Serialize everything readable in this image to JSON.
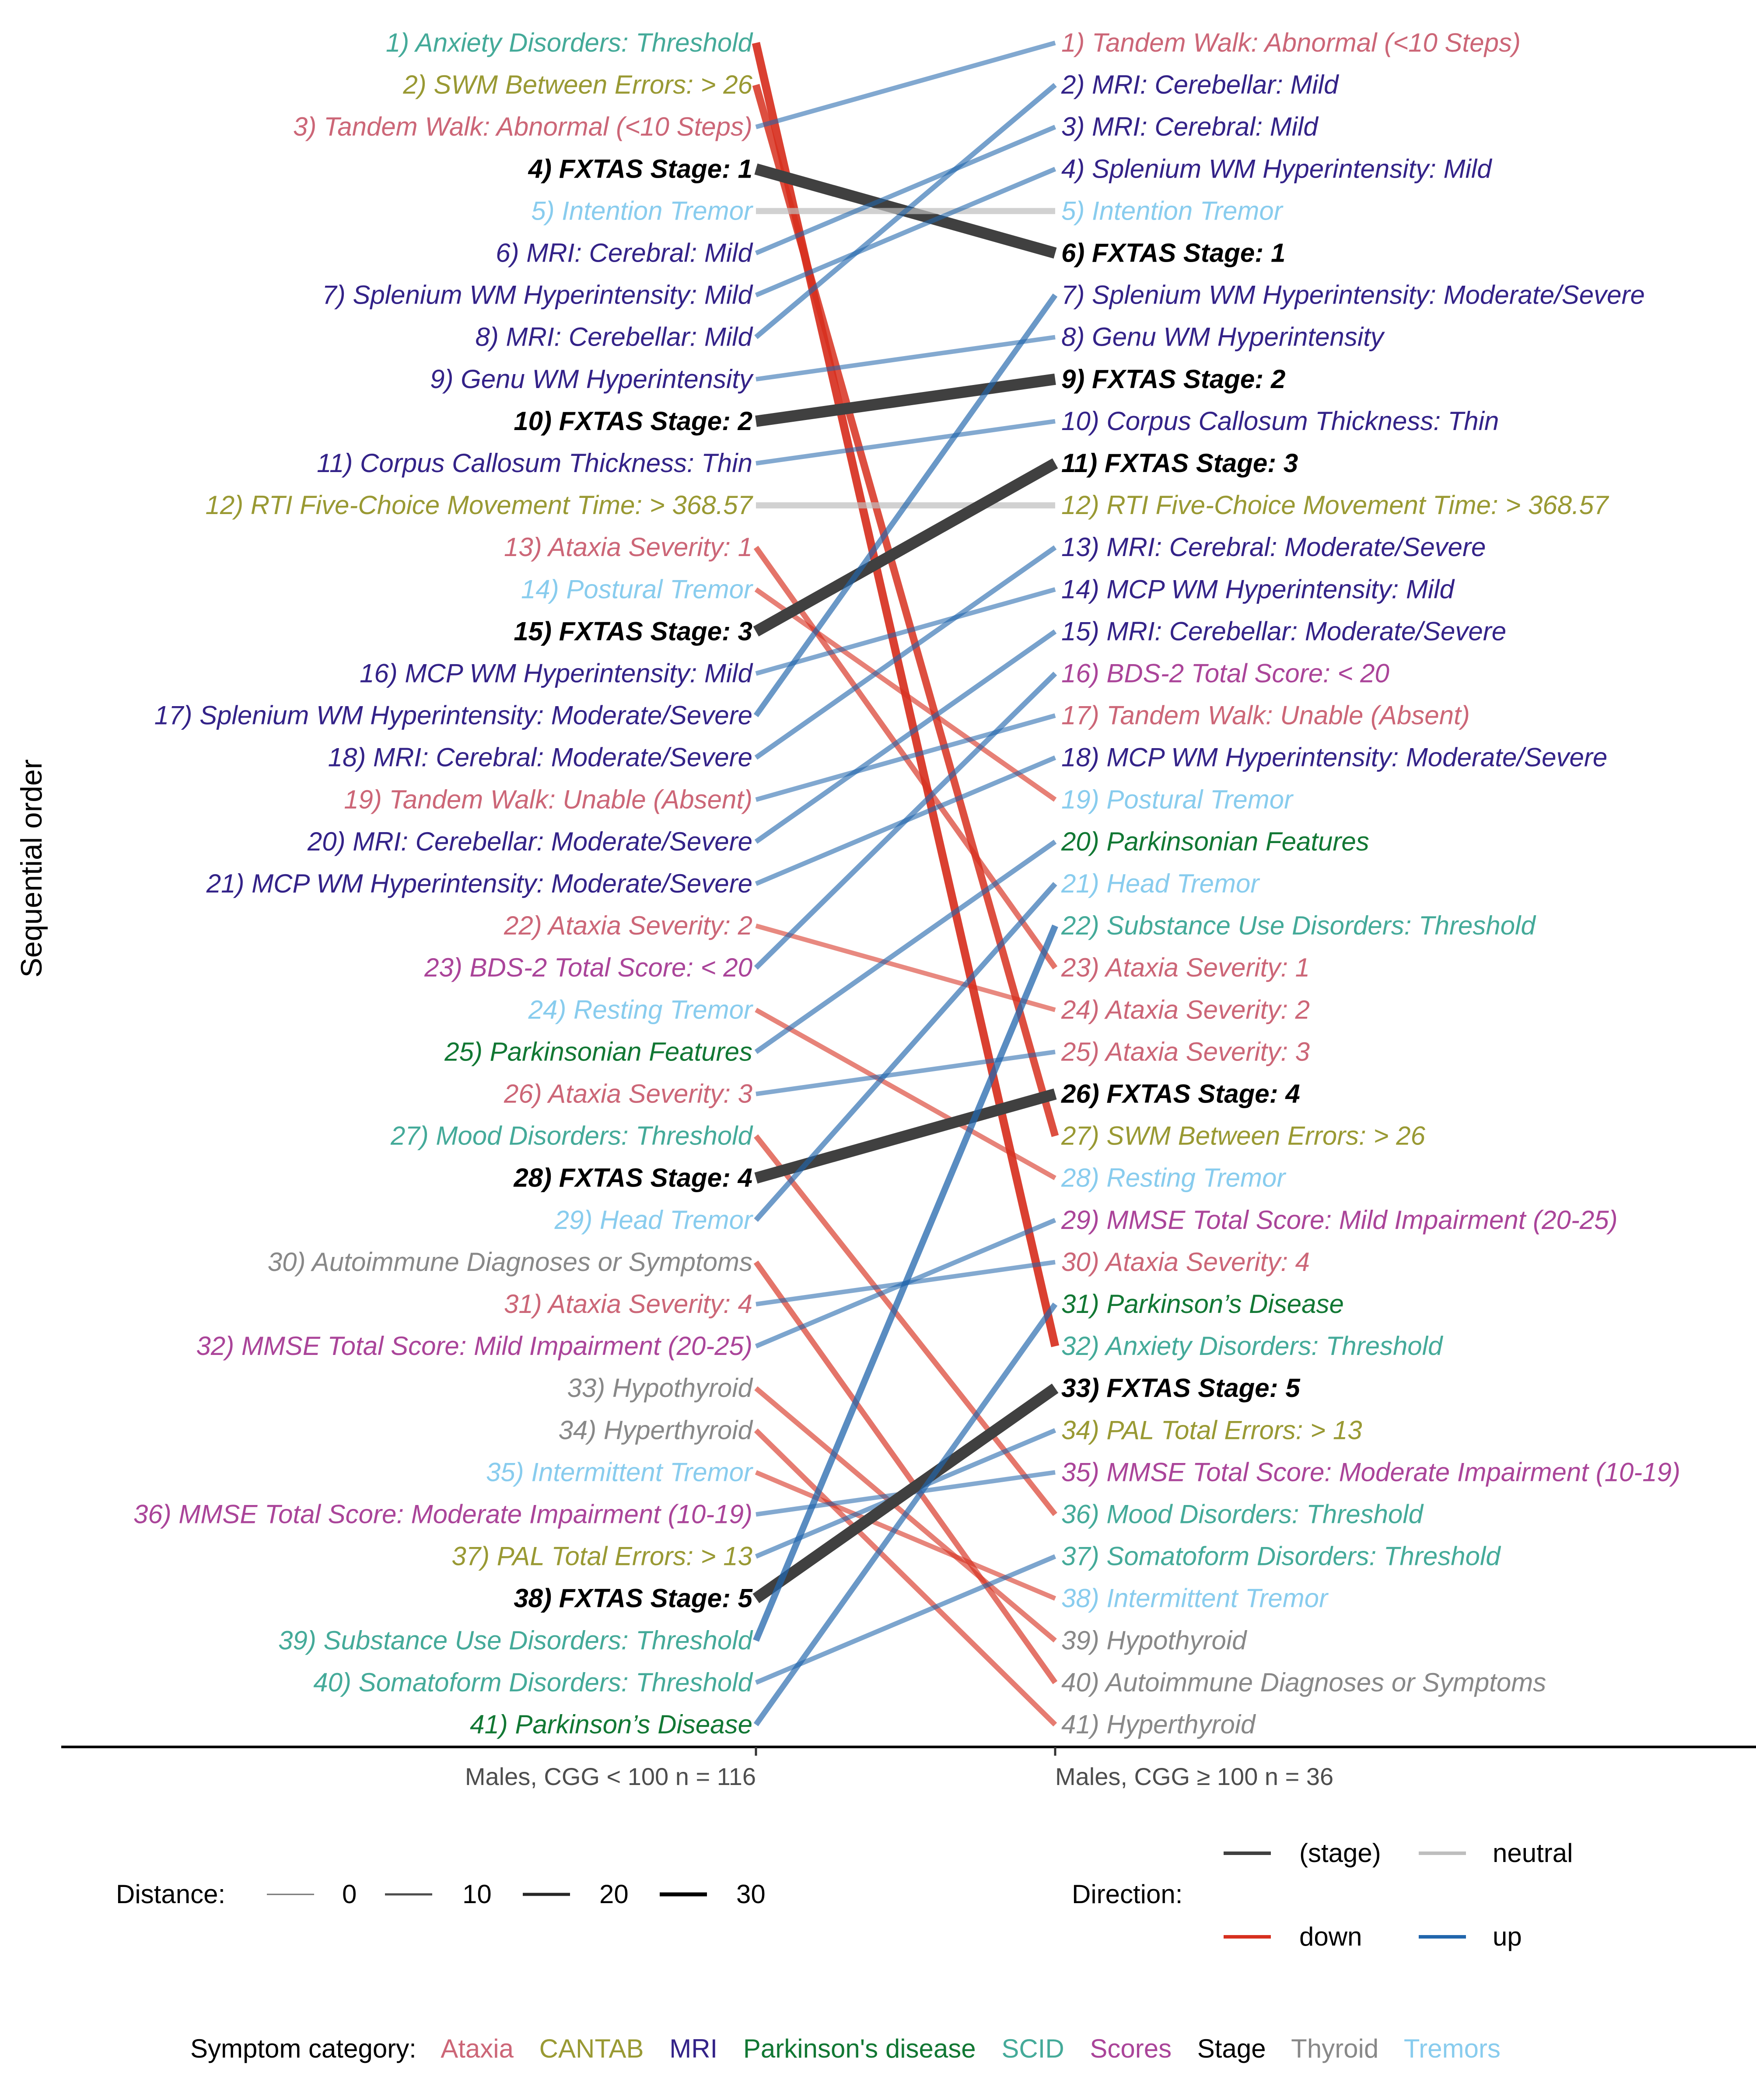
{
  "chart_data": {
    "type": "slope",
    "ylabel": "Sequential order",
    "columns": [
      "Males, CGG < 100 n = 116",
      "Males, CGG ≥ 100 n = 36"
    ],
    "category_colors": {
      "Ataxia": "#CC6677",
      "CANTAB": "#999933",
      "MRI": "#332288",
      "Parkinson's disease": "#117733",
      "SCID": "#44AA99",
      "Scores": "#AA4499",
      "Stage": "#000000",
      "Thyroid": "#888888",
      "Tremors": "#88CCEE"
    },
    "direction_colors": {
      "(stage)": "#404040",
      "neutral": "#BEBEBE",
      "down": "#D7301F",
      "up": "#2166AC"
    },
    "left": [
      {
        "label": "1) Anxiety Disorders: Threshold",
        "cat": "SCID"
      },
      {
        "label": "2) SWM Between Errors: > 26",
        "cat": "CANTAB"
      },
      {
        "label": "3) Tandem Walk: Abnormal (<10 Steps)",
        "cat": "Ataxia"
      },
      {
        "label": "4) FXTAS Stage: 1",
        "cat": "Stage"
      },
      {
        "label": "5) Intention Tremor",
        "cat": "Tremors"
      },
      {
        "label": "6) MRI: Cerebral: Mild",
        "cat": "MRI"
      },
      {
        "label": "7) Splenium WM Hyperintensity: Mild",
        "cat": "MRI"
      },
      {
        "label": "8) MRI: Cerebellar: Mild",
        "cat": "MRI"
      },
      {
        "label": "9) Genu WM Hyperintensity",
        "cat": "MRI"
      },
      {
        "label": "10) FXTAS Stage: 2",
        "cat": "Stage"
      },
      {
        "label": "11) Corpus Callosum Thickness: Thin",
        "cat": "MRI"
      },
      {
        "label": "12) RTI Five-Choice  Movement Time: > 368.57",
        "cat": "CANTAB"
      },
      {
        "label": "13) Ataxia Severity: 1",
        "cat": "Ataxia"
      },
      {
        "label": "14) Postural Tremor",
        "cat": "Tremors"
      },
      {
        "label": "15) FXTAS Stage: 3",
        "cat": "Stage"
      },
      {
        "label": "16) MCP WM Hyperintensity: Mild",
        "cat": "MRI"
      },
      {
        "label": "17) Splenium WM Hyperintensity: Moderate/Severe",
        "cat": "MRI"
      },
      {
        "label": "18) MRI: Cerebral: Moderate/Severe",
        "cat": "MRI"
      },
      {
        "label": "19) Tandem Walk: Unable (Absent)",
        "cat": "Ataxia"
      },
      {
        "label": "20) MRI: Cerebellar: Moderate/Severe",
        "cat": "MRI"
      },
      {
        "label": "21) MCP WM Hyperintensity: Moderate/Severe",
        "cat": "MRI"
      },
      {
        "label": "22) Ataxia Severity: 2",
        "cat": "Ataxia"
      },
      {
        "label": "23) BDS-2  Total Score: < 20",
        "cat": "Scores"
      },
      {
        "label": "24) Resting Tremor",
        "cat": "Tremors"
      },
      {
        "label": "25) Parkinsonian Features",
        "cat": "Parkinson's disease"
      },
      {
        "label": "26) Ataxia Severity: 3",
        "cat": "Ataxia"
      },
      {
        "label": "27) Mood Disorders: Threshold",
        "cat": "SCID"
      },
      {
        "label": "28) FXTAS Stage: 4",
        "cat": "Stage"
      },
      {
        "label": "29) Head Tremor",
        "cat": "Tremors"
      },
      {
        "label": "30) Autoimmune Diagnoses or Symptoms",
        "cat": "Thyroid"
      },
      {
        "label": "31) Ataxia Severity: 4",
        "cat": "Ataxia"
      },
      {
        "label": "32) MMSE Total Score: Mild Impairment (20-25)",
        "cat": "Scores"
      },
      {
        "label": "33) Hypothyroid",
        "cat": "Thyroid"
      },
      {
        "label": "34) Hyperthyroid",
        "cat": "Thyroid"
      },
      {
        "label": "35) Intermittent Tremor",
        "cat": "Tremors"
      },
      {
        "label": "36) MMSE Total Score: Moderate Impairment (10-19)",
        "cat": "Scores"
      },
      {
        "label": "37) PAL Total Errors: > 13",
        "cat": "CANTAB"
      },
      {
        "label": "38) FXTAS Stage: 5",
        "cat": "Stage"
      },
      {
        "label": "39) Substance Use Disorders: Threshold",
        "cat": "SCID"
      },
      {
        "label": "40) Somatoform Disorders: Threshold",
        "cat": "SCID"
      },
      {
        "label": "41) Parkinson’s Disease",
        "cat": "Parkinson's disease"
      }
    ],
    "right": [
      {
        "label": "1) Tandem Walk: Abnormal (<10 Steps)",
        "cat": "Ataxia"
      },
      {
        "label": "2) MRI: Cerebellar: Mild",
        "cat": "MRI"
      },
      {
        "label": "3) MRI: Cerebral: Mild",
        "cat": "MRI"
      },
      {
        "label": "4) Splenium WM Hyperintensity: Mild",
        "cat": "MRI"
      },
      {
        "label": "5) Intention Tremor",
        "cat": "Tremors"
      },
      {
        "label": "6) FXTAS Stage: 1",
        "cat": "Stage"
      },
      {
        "label": "7) Splenium WM Hyperintensity: Moderate/Severe",
        "cat": "MRI"
      },
      {
        "label": "8) Genu WM Hyperintensity",
        "cat": "MRI"
      },
      {
        "label": "9) FXTAS Stage: 2",
        "cat": "Stage"
      },
      {
        "label": "10) Corpus Callosum Thickness: Thin",
        "cat": "MRI"
      },
      {
        "label": "11) FXTAS Stage: 3",
        "cat": "Stage"
      },
      {
        "label": "12) RTI Five-Choice  Movement Time: > 368.57",
        "cat": "CANTAB"
      },
      {
        "label": "13) MRI: Cerebral: Moderate/Severe",
        "cat": "MRI"
      },
      {
        "label": "14) MCP WM Hyperintensity: Mild",
        "cat": "MRI"
      },
      {
        "label": "15) MRI: Cerebellar: Moderate/Severe",
        "cat": "MRI"
      },
      {
        "label": "16) BDS-2  Total Score: < 20",
        "cat": "Scores"
      },
      {
        "label": "17) Tandem Walk: Unable (Absent)",
        "cat": "Ataxia"
      },
      {
        "label": "18) MCP WM Hyperintensity: Moderate/Severe",
        "cat": "MRI"
      },
      {
        "label": "19) Postural Tremor",
        "cat": "Tremors"
      },
      {
        "label": "20) Parkinsonian Features",
        "cat": "Parkinson's disease"
      },
      {
        "label": "21) Head Tremor",
        "cat": "Tremors"
      },
      {
        "label": "22) Substance Use Disorders: Threshold",
        "cat": "SCID"
      },
      {
        "label": "23) Ataxia Severity: 1",
        "cat": "Ataxia"
      },
      {
        "label": "24) Ataxia Severity: 2",
        "cat": "Ataxia"
      },
      {
        "label": "25) Ataxia Severity: 3",
        "cat": "Ataxia"
      },
      {
        "label": "26) FXTAS Stage: 4",
        "cat": "Stage"
      },
      {
        "label": "27) SWM Between Errors: > 26",
        "cat": "CANTAB"
      },
      {
        "label": "28) Resting Tremor",
        "cat": "Tremors"
      },
      {
        "label": "29) MMSE Total Score: Mild Impairment (20-25)",
        "cat": "Scores"
      },
      {
        "label": "30) Ataxia Severity: 4",
        "cat": "Ataxia"
      },
      {
        "label": "31) Parkinson’s Disease",
        "cat": "Parkinson's disease"
      },
      {
        "label": "32) Anxiety Disorders: Threshold",
        "cat": "SCID"
      },
      {
        "label": "33) FXTAS Stage: 5",
        "cat": "Stage"
      },
      {
        "label": "34) PAL Total Errors: > 13",
        "cat": "CANTAB"
      },
      {
        "label": "35) MMSE Total Score: Moderate Impairment (10-19)",
        "cat": "Scores"
      },
      {
        "label": "36) Mood Disorders: Threshold",
        "cat": "SCID"
      },
      {
        "label": "37) Somatoform Disorders: Threshold",
        "cat": "SCID"
      },
      {
        "label": "38) Intermittent Tremor",
        "cat": "Tremors"
      },
      {
        "label": "39) Hypothyroid",
        "cat": "Thyroid"
      },
      {
        "label": "40) Autoimmune Diagnoses or Symptoms",
        "cat": "Thyroid"
      },
      {
        "label": "41) Hyperthyroid",
        "cat": "Thyroid"
      }
    ],
    "links": [
      {
        "from": 1,
        "to": 32,
        "direction": "down"
      },
      {
        "from": 2,
        "to": 27,
        "direction": "down"
      },
      {
        "from": 3,
        "to": 1,
        "direction": "up"
      },
      {
        "from": 4,
        "to": 6,
        "direction": "(stage)"
      },
      {
        "from": 5,
        "to": 5,
        "direction": "neutral"
      },
      {
        "from": 6,
        "to": 3,
        "direction": "up"
      },
      {
        "from": 7,
        "to": 4,
        "direction": "up"
      },
      {
        "from": 8,
        "to": 2,
        "direction": "up"
      },
      {
        "from": 9,
        "to": 8,
        "direction": "up"
      },
      {
        "from": 10,
        "to": 9,
        "direction": "(stage)"
      },
      {
        "from": 11,
        "to": 10,
        "direction": "up"
      },
      {
        "from": 12,
        "to": 12,
        "direction": "neutral"
      },
      {
        "from": 13,
        "to": 23,
        "direction": "down"
      },
      {
        "from": 14,
        "to": 19,
        "direction": "down"
      },
      {
        "from": 15,
        "to": 11,
        "direction": "(stage)"
      },
      {
        "from": 16,
        "to": 14,
        "direction": "up"
      },
      {
        "from": 17,
        "to": 7,
        "direction": "up"
      },
      {
        "from": 18,
        "to": 13,
        "direction": "up"
      },
      {
        "from": 19,
        "to": 17,
        "direction": "up"
      },
      {
        "from": 20,
        "to": 15,
        "direction": "up"
      },
      {
        "from": 21,
        "to": 18,
        "direction": "up"
      },
      {
        "from": 22,
        "to": 24,
        "direction": "down"
      },
      {
        "from": 23,
        "to": 16,
        "direction": "up"
      },
      {
        "from": 24,
        "to": 28,
        "direction": "down"
      },
      {
        "from": 25,
        "to": 20,
        "direction": "up"
      },
      {
        "from": 26,
        "to": 25,
        "direction": "up"
      },
      {
        "from": 27,
        "to": 36,
        "direction": "down"
      },
      {
        "from": 28,
        "to": 26,
        "direction": "(stage)"
      },
      {
        "from": 29,
        "to": 21,
        "direction": "up"
      },
      {
        "from": 30,
        "to": 40,
        "direction": "down"
      },
      {
        "from": 31,
        "to": 30,
        "direction": "up"
      },
      {
        "from": 32,
        "to": 29,
        "direction": "up"
      },
      {
        "from": 33,
        "to": 39,
        "direction": "down"
      },
      {
        "from": 34,
        "to": 41,
        "direction": "down"
      },
      {
        "from": 35,
        "to": 38,
        "direction": "down"
      },
      {
        "from": 36,
        "to": 35,
        "direction": "up"
      },
      {
        "from": 37,
        "to": 34,
        "direction": "up"
      },
      {
        "from": 38,
        "to": 33,
        "direction": "(stage)"
      },
      {
        "from": 39,
        "to": 22,
        "direction": "up"
      },
      {
        "from": 40,
        "to": 37,
        "direction": "up"
      },
      {
        "from": 41,
        "to": 31,
        "direction": "up"
      }
    ],
    "legend_distance": {
      "title": "Distance:",
      "values": [
        "0",
        "10",
        "20",
        "30"
      ]
    },
    "legend_direction": {
      "title": "Direction:",
      "items": [
        "(stage)",
        "neutral",
        "down",
        "up"
      ]
    },
    "legend_category": {
      "title": "Symptom category:",
      "items": [
        "Ataxia",
        "CANTAB",
        "MRI",
        "Parkinson's disease",
        "SCID",
        "Scores",
        "Stage",
        "Thyroid",
        "Tremors"
      ]
    }
  }
}
